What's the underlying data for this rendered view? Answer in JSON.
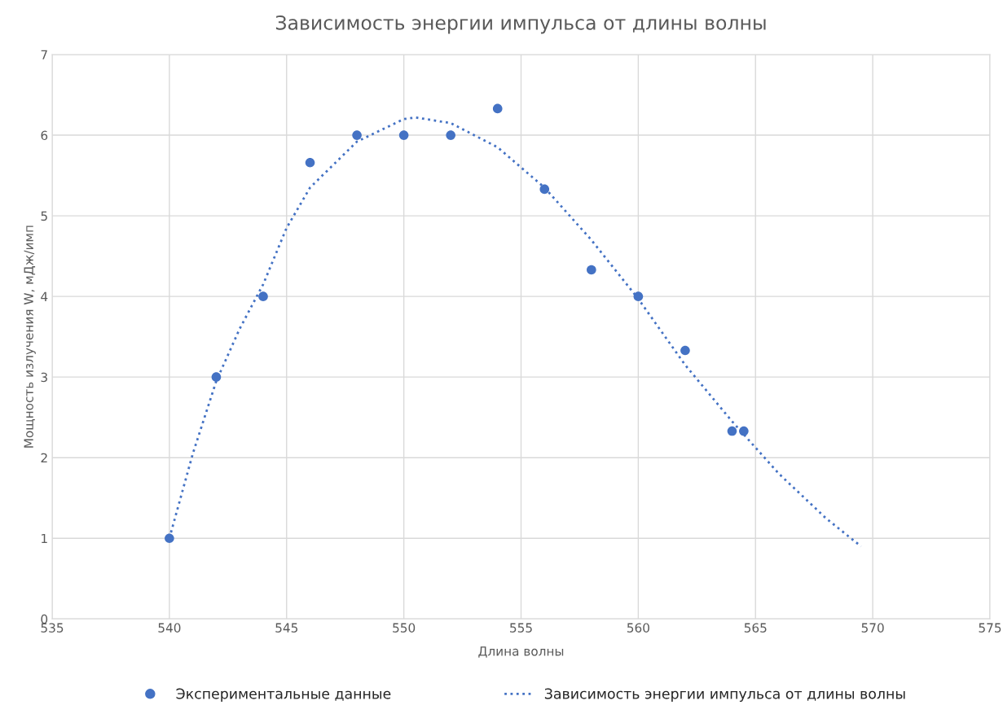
{
  "chart_data": {
    "type": "scatter",
    "title": "Зависимость энергии импульса от длины волны",
    "xlabel": "Длина волны",
    "ylabel": "Мощность излучения W, мДж/имп",
    "xlim": [
      535,
      575
    ],
    "xticks": [
      535,
      540,
      545,
      550,
      555,
      560,
      565,
      570,
      575
    ],
    "ylim": [
      0,
      7
    ],
    "yticks": [
      0,
      1,
      2,
      3,
      4,
      5,
      6,
      7
    ],
    "grid": true,
    "legend": "bottom",
    "series": [
      {
        "name": "Экспериментальные данные",
        "color": "#4472c4",
        "marker": "circle",
        "x": [
          540,
          542,
          544,
          546,
          548,
          550,
          552,
          554,
          556,
          558,
          560,
          562,
          564,
          564.5
        ],
        "values": [
          1,
          3,
          4,
          5.66,
          6,
          6,
          6,
          6.33,
          5.33,
          4.33,
          4,
          3.33,
          2.33,
          2.33
        ]
      },
      {
        "name": "Зависимость энергии импульса от длины волны",
        "type": "line",
        "color": "#4472c4",
        "marker": "none",
        "line_style": "dotted",
        "x": [
          540,
          541,
          542,
          543,
          544,
          545,
          546,
          548,
          550,
          550.5,
          552,
          554,
          556,
          558,
          560,
          562,
          564,
          566,
          568,
          569.5
        ],
        "values": [
          1.0,
          2.05,
          2.95,
          3.6,
          4.15,
          4.85,
          5.35,
          5.92,
          6.2,
          6.22,
          6.15,
          5.85,
          5.35,
          4.7,
          3.97,
          3.15,
          2.45,
          1.8,
          1.25,
          0.9
        ]
      }
    ]
  }
}
